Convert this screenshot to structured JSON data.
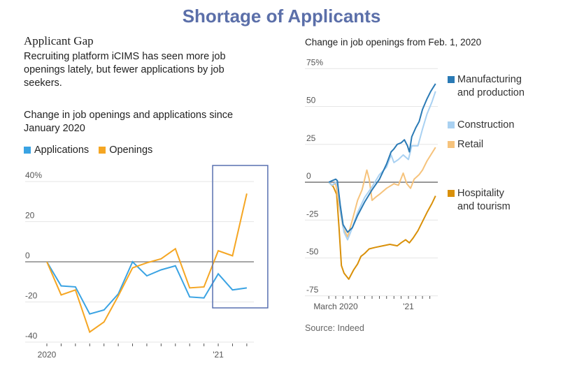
{
  "title": "Shortage of Applicants",
  "left": {
    "heading": "Applicant Gap",
    "description": "Recruiting platform iCIMS has seen more job openings lately, but fewer applications by job seekers.",
    "subtitle": "Change in job openings and applications since January 2020"
  },
  "right": {
    "subtitle": "Change in job openings from Feb. 1, 2020",
    "source": "Source: Indeed"
  },
  "chart_data": [
    {
      "type": "line",
      "x_labels": [
        "2020",
        "",
        "",
        "",
        "",
        "",
        "",
        "",
        "",
        "",
        "",
        "",
        "'21",
        "",
        ""
      ],
      "x": [
        "2020-01",
        "2020-02",
        "2020-03",
        "2020-04",
        "2020-05",
        "2020-06",
        "2020-07",
        "2020-08",
        "2020-09",
        "2020-10",
        "2020-11",
        "2020-12",
        "2021-01",
        "2021-02",
        "2021-03"
      ],
      "series": [
        {
          "name": "Applications",
          "color": "#3aa3e3",
          "values": [
            0,
            -12,
            -12.5,
            -26,
            -24,
            -16,
            0,
            -7,
            -4,
            -2,
            -17.5,
            -18,
            -6,
            -14,
            -13
          ]
        },
        {
          "name": "Openings",
          "color": "#f5a623",
          "values": [
            0,
            -16.5,
            -14,
            -35,
            -30,
            -17,
            -3,
            -0.5,
            1.5,
            6.5,
            -13,
            -12.5,
            5.5,
            3,
            34
          ]
        }
      ],
      "yticks": [
        {
          "v": 40,
          "label": "40%"
        },
        {
          "v": 20,
          "label": "20"
        },
        {
          "v": 0,
          "label": "0"
        },
        {
          "v": -20,
          "label": "-20"
        },
        {
          "v": -40,
          "label": "-40"
        }
      ],
      "ylim": [
        -40,
        40
      ],
      "highlight": {
        "from": "2021-01",
        "to": "2021-03",
        "color": "#5870b0"
      },
      "legend": "top-left"
    },
    {
      "type": "line",
      "x_labels": [
        {
          "date": "2020-03-01",
          "label": "March 2020"
        },
        {
          "date": "2021-01-01",
          "label": "'21"
        }
      ],
      "yticks": [
        {
          "v": 75,
          "label": "75%"
        },
        {
          "v": 50,
          "label": "50"
        },
        {
          "v": 25,
          "label": "25"
        },
        {
          "v": 0,
          "label": "0"
        },
        {
          "v": -25,
          "label": "-25"
        },
        {
          "v": -50,
          "label": "-50"
        },
        {
          "v": -75,
          "label": "-75"
        }
      ],
      "ylim": [
        -75,
        75
      ],
      "legend": "right",
      "series": [
        {
          "name": "Manufacturing and production",
          "color": "#2a7ab5",
          "points": [
            [
              "2020-02-01",
              0
            ],
            [
              "2020-02-15",
              1
            ],
            [
              "2020-03-01",
              2
            ],
            [
              "2020-03-08",
              1
            ],
            [
              "2020-03-20",
              -15
            ],
            [
              "2020-04-01",
              -28
            ],
            [
              "2020-04-20",
              -33
            ],
            [
              "2020-05-10",
              -30
            ],
            [
              "2020-06-01",
              -22
            ],
            [
              "2020-07-01",
              -13
            ],
            [
              "2020-08-01",
              -5
            ],
            [
              "2020-09-01",
              2
            ],
            [
              "2020-10-01",
              12
            ],
            [
              "2020-10-20",
              20
            ],
            [
              "2020-11-01",
              22
            ],
            [
              "2020-11-15",
              25
            ],
            [
              "2020-12-01",
              26
            ],
            [
              "2020-12-15",
              28
            ],
            [
              "2020-12-28",
              24
            ],
            [
              "2021-01-05",
              20
            ],
            [
              "2021-01-15",
              30
            ],
            [
              "2021-02-01",
              36
            ],
            [
              "2021-02-15",
              40
            ],
            [
              "2021-03-01",
              48
            ],
            [
              "2021-03-20",
              55
            ],
            [
              "2021-04-05",
              60
            ],
            [
              "2021-04-25",
              65
            ]
          ]
        },
        {
          "name": "Construction",
          "color": "#a9d1f2",
          "points": [
            [
              "2020-02-01",
              0
            ],
            [
              "2020-02-15",
              -2
            ],
            [
              "2020-03-01",
              0
            ],
            [
              "2020-03-10",
              -3
            ],
            [
              "2020-03-22",
              -20
            ],
            [
              "2020-04-05",
              -33
            ],
            [
              "2020-04-20",
              -38
            ],
            [
              "2020-05-10",
              -30
            ],
            [
              "2020-06-01",
              -20
            ],
            [
              "2020-07-01",
              -10
            ],
            [
              "2020-08-01",
              -3
            ],
            [
              "2020-09-01",
              5
            ],
            [
              "2020-10-01",
              10
            ],
            [
              "2020-10-20",
              18
            ],
            [
              "2020-11-01",
              13
            ],
            [
              "2020-11-20",
              15
            ],
            [
              "2020-12-10",
              18
            ],
            [
              "2021-01-01",
              15
            ],
            [
              "2021-01-15",
              24
            ],
            [
              "2021-02-10",
              24
            ],
            [
              "2021-03-01",
              35
            ],
            [
              "2021-03-20",
              45
            ],
            [
              "2021-04-10",
              53
            ],
            [
              "2021-04-25",
              60
            ]
          ]
        },
        {
          "name": "Retail",
          "color": "#f6c37c",
          "points": [
            [
              "2020-02-01",
              0
            ],
            [
              "2020-02-15",
              -2
            ],
            [
              "2020-03-01",
              -1
            ],
            [
              "2020-03-15",
              -15
            ],
            [
              "2020-04-01",
              -30
            ],
            [
              "2020-04-20",
              -36
            ],
            [
              "2020-05-10",
              -25
            ],
            [
              "2020-06-01",
              -12
            ],
            [
              "2020-06-20",
              -5
            ],
            [
              "2020-07-10",
              8
            ],
            [
              "2020-07-20",
              2
            ],
            [
              "2020-08-01",
              -12
            ],
            [
              "2020-08-15",
              -10
            ],
            [
              "2020-09-01",
              -8
            ],
            [
              "2020-10-01",
              -4
            ],
            [
              "2020-11-01",
              -1
            ],
            [
              "2020-11-20",
              -2
            ],
            [
              "2020-12-10",
              6
            ],
            [
              "2020-12-25",
              -1
            ],
            [
              "2021-01-10",
              -4
            ],
            [
              "2021-01-25",
              2
            ],
            [
              "2021-02-15",
              5
            ],
            [
              "2021-03-01",
              8
            ],
            [
              "2021-03-20",
              14
            ],
            [
              "2021-04-25",
              23
            ]
          ]
        },
        {
          "name": "Hospitality and tourism",
          "color": "#d99009",
          "points": [
            [
              "2020-02-01",
              0
            ],
            [
              "2020-02-20",
              -3
            ],
            [
              "2020-03-05",
              -8
            ],
            [
              "2020-03-15",
              -30
            ],
            [
              "2020-03-25",
              -55
            ],
            [
              "2020-04-05",
              -60
            ],
            [
              "2020-04-25",
              -64
            ],
            [
              "2020-05-15",
              -58
            ],
            [
              "2020-06-01",
              -54
            ],
            [
              "2020-06-15",
              -49
            ],
            [
              "2020-07-01",
              -47
            ],
            [
              "2020-07-20",
              -44
            ],
            [
              "2020-08-15",
              -43
            ],
            [
              "2020-09-15",
              -42
            ],
            [
              "2020-10-15",
              -41
            ],
            [
              "2020-11-15",
              -42
            ],
            [
              "2020-12-01",
              -40
            ],
            [
              "2020-12-20",
              -38
            ],
            [
              "2021-01-05",
              -40
            ],
            [
              "2021-01-20",
              -37
            ],
            [
              "2021-02-10",
              -32
            ],
            [
              "2021-03-01",
              -26
            ],
            [
              "2021-03-20",
              -20
            ],
            [
              "2021-04-10",
              -14
            ],
            [
              "2021-04-25",
              -9
            ]
          ]
        }
      ]
    }
  ]
}
